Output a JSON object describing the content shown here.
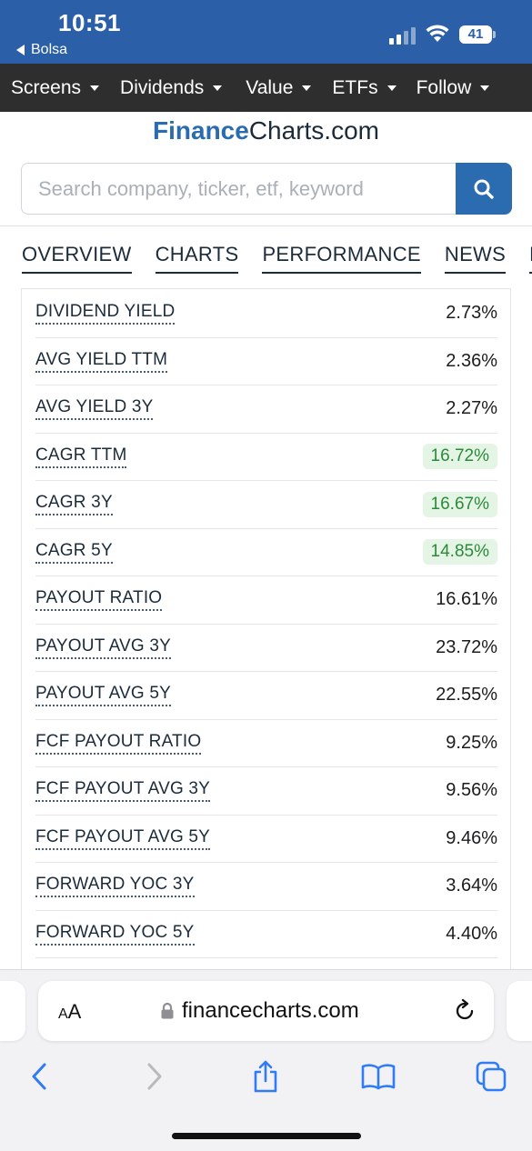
{
  "status_bar": {
    "time": "10:51",
    "back_app": "Bolsa",
    "battery": "41"
  },
  "nav": {
    "items": [
      {
        "label": "Screens"
      },
      {
        "label": "Dividends"
      },
      {
        "label": "Value"
      },
      {
        "label": "ETFs"
      },
      {
        "label": "Follow"
      }
    ]
  },
  "header": {
    "logo_brand": "Finance",
    "logo_rest": "Charts.com",
    "search_placeholder": "Search company, ticker, etf, keyword"
  },
  "tabs": [
    {
      "label": "OVERVIEW"
    },
    {
      "label": "CHARTS"
    },
    {
      "label": "PERFORMANCE"
    },
    {
      "label": "NEWS"
    },
    {
      "label": "D"
    }
  ],
  "metrics": [
    {
      "label": "DIVIDEND YIELD",
      "value": "2.73%"
    },
    {
      "label": "AVG YIELD TTM",
      "value": "2.36%"
    },
    {
      "label": "AVG YIELD 3Y",
      "value": "2.27%"
    },
    {
      "label": "CAGR TTM",
      "value": "16.72%"
    },
    {
      "label": "CAGR 3Y",
      "value": "16.67%"
    },
    {
      "label": "CAGR 5Y",
      "value": "14.85%"
    },
    {
      "label": "PAYOUT RATIO",
      "value": "16.61%"
    },
    {
      "label": "PAYOUT AVG 3Y",
      "value": "23.72%"
    },
    {
      "label": "PAYOUT AVG 5Y",
      "value": "22.55%"
    },
    {
      "label": "FCF PAYOUT RATIO",
      "value": "9.25%"
    },
    {
      "label": "FCF PAYOUT AVG 3Y",
      "value": "9.56%"
    },
    {
      "label": "FCF PAYOUT AVG 5Y",
      "value": "9.46%"
    },
    {
      "label": "FORWARD YOC 3Y",
      "value": "3.64%"
    },
    {
      "label": "FORWARD YOC 5Y",
      "value": "4.40%"
    }
  ],
  "colors": {
    "positive_text": "#2d8a3a",
    "positive_bg": "#e4f4e5",
    "brand_blue": "#2b6cb0",
    "status_blue": "#2b5fa8",
    "nav_dark": "#2e2e2e"
  },
  "safari": {
    "text_size_label": "AA",
    "url": "financecharts.com"
  }
}
